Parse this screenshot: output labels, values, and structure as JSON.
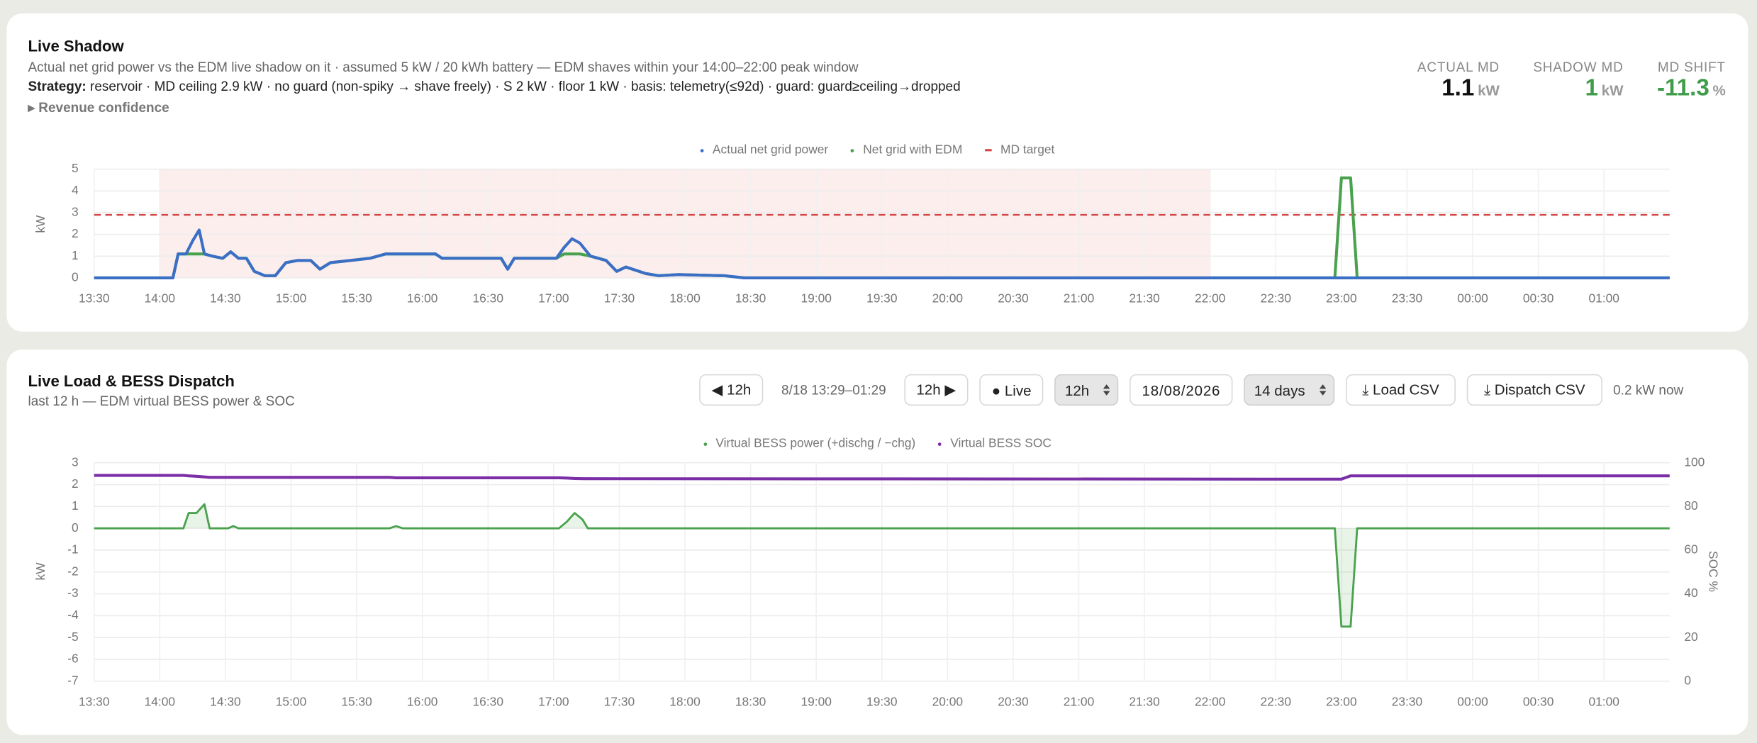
{
  "shadow_panel": {
    "title": "Live Shadow",
    "subtitle": "Actual net grid power vs the EDM live shadow on it · assumed 5 kW / 20 kWh battery — EDM shaves within your 14:00–22:00 peak window",
    "strategy_label": "Strategy:",
    "strategy": "reservoir · MD ceiling 2.9 kW · no guard (non-spiky → shave freely) · S 2 kW · floor 1 kW · basis: telemetry(≤92d) · guard: guard≥ceiling→dropped",
    "revenue_toggle": "▸ Revenue confidence",
    "metrics": [
      {
        "label": "ACTUAL MD",
        "value": 1.1,
        "unit": "kW",
        "color": "#111111"
      },
      {
        "label": "SHADOW MD",
        "value": 1,
        "unit": "kW",
        "color": "#3f9c4a"
      },
      {
        "label": "MD SHIFT",
        "value": -11.3,
        "unit": "%",
        "color": "#3f9c4a"
      }
    ]
  },
  "dispatch_panel": {
    "title": "Live Load & BESS Dispatch",
    "subtitle": "last 12 h — EDM virtual BESS power & SOC",
    "controls": {
      "prev": "◀ 12h",
      "range": "8/18 13:29–01:29",
      "next": "12h ▶",
      "live": "● Live",
      "window": "12h",
      "date": "18/08/2026",
      "history": "14 days",
      "load_csv": "⤓ Load CSV",
      "dispatch_csv": "⤓ Dispatch CSV",
      "now": "0.2 kW now"
    }
  },
  "chart_data": [
    {
      "type": "line",
      "ylabel": "kW",
      "xlim": [
        13.5,
        25.5
      ],
      "xticks": [
        {
          "value": 13.5,
          "label": "13:30"
        },
        {
          "value": 14,
          "label": "14:00"
        },
        {
          "value": 14.5,
          "label": "14:30"
        },
        {
          "value": 15,
          "label": "15:00"
        },
        {
          "value": 15.5,
          "label": "15:30"
        },
        {
          "value": 16,
          "label": "16:00"
        },
        {
          "value": 16.5,
          "label": "16:30"
        },
        {
          "value": 17,
          "label": "17:00"
        },
        {
          "value": 17.5,
          "label": "17:30"
        },
        {
          "value": 18,
          "label": "18:00"
        },
        {
          "value": 18.5,
          "label": "18:30"
        },
        {
          "value": 19,
          "label": "19:00"
        },
        {
          "value": 19.5,
          "label": "19:30"
        },
        {
          "value": 20,
          "label": "20:00"
        },
        {
          "value": 20.5,
          "label": "20:30"
        },
        {
          "value": 21,
          "label": "21:00"
        },
        {
          "value": 21.5,
          "label": "21:30"
        },
        {
          "value": 22,
          "label": "22:00"
        },
        {
          "value": 22.5,
          "label": "22:30"
        },
        {
          "value": 23,
          "label": "23:00"
        },
        {
          "value": 23.5,
          "label": "23:30"
        },
        {
          "value": 24,
          "label": "00:00"
        },
        {
          "value": 24.5,
          "label": "00:30"
        },
        {
          "value": 25,
          "label": "01:00"
        }
      ],
      "ylim": [
        0,
        5
      ],
      "yticks": [
        0,
        1,
        2,
        3,
        4,
        5
      ],
      "grid": true,
      "legend": "top",
      "peak_window": [
        14,
        22
      ],
      "peak_color": "#fdeeee",
      "x": [
        13.5,
        14.1,
        14.14,
        14.2,
        14.25,
        14.3,
        14.34,
        14.4,
        14.48,
        14.54,
        14.6,
        14.66,
        14.72,
        14.8,
        14.88,
        14.96,
        15.05,
        15.15,
        15.22,
        15.3,
        15.45,
        15.6,
        15.72,
        16.1,
        16.15,
        16.6,
        16.65,
        16.7,
        17.02,
        17.08,
        17.14,
        17.2,
        17.28,
        17.4,
        17.48,
        17.55,
        17.7,
        17.8,
        17.95,
        18.3,
        18.45,
        22.95,
        23.0,
        23.07,
        23.12,
        25.5
      ],
      "series": [
        {
          "name": "Actual net grid power",
          "color": "#3b6fc6",
          "values": [
            0,
            0,
            1.1,
            1.1,
            1.7,
            2.2,
            1.1,
            1.0,
            0.9,
            1.2,
            0.9,
            0.9,
            0.3,
            0.1,
            0.1,
            0.7,
            0.8,
            0.8,
            0.4,
            0.7,
            0.8,
            0.9,
            1.1,
            1.1,
            0.9,
            0.9,
            0.4,
            0.9,
            0.9,
            1.4,
            1.8,
            1.6,
            1.0,
            0.8,
            0.3,
            0.5,
            0.2,
            0.1,
            0.15,
            0.1,
            0,
            0,
            0,
            0,
            0,
            0
          ]
        },
        {
          "name": "Net grid with EDM",
          "color": "#4aa24e",
          "values": [
            0,
            0,
            1.1,
            1.1,
            1.1,
            1.1,
            1.1,
            1.0,
            0.9,
            1.2,
            0.9,
            0.9,
            0.3,
            0.1,
            0.1,
            0.7,
            0.8,
            0.8,
            0.4,
            0.7,
            0.8,
            0.9,
            1.1,
            1.1,
            0.9,
            0.9,
            0.4,
            0.9,
            0.9,
            1.1,
            1.1,
            1.1,
            1.0,
            0.8,
            0.3,
            0.5,
            0.2,
            0.1,
            0.15,
            0.1,
            0,
            0,
            4.6,
            4.6,
            0,
            0
          ]
        }
      ],
      "reference_lines": [
        {
          "name": "MD target",
          "value": 2.9,
          "color": "#d64545",
          "style": "dashed"
        }
      ]
    },
    {
      "type": "line",
      "ylabel": "kW",
      "y2label": "SOC %",
      "xlim": [
        13.5,
        25.5
      ],
      "xticks": [
        {
          "value": 13.5,
          "label": "13:30"
        },
        {
          "value": 14,
          "label": "14:00"
        },
        {
          "value": 14.5,
          "label": "14:30"
        },
        {
          "value": 15,
          "label": "15:00"
        },
        {
          "value": 15.5,
          "label": "15:30"
        },
        {
          "value": 16,
          "label": "16:00"
        },
        {
          "value": 16.5,
          "label": "16:30"
        },
        {
          "value": 17,
          "label": "17:00"
        },
        {
          "value": 17.5,
          "label": "17:30"
        },
        {
          "value": 18,
          "label": "18:00"
        },
        {
          "value": 18.5,
          "label": "18:30"
        },
        {
          "value": 19,
          "label": "19:00"
        },
        {
          "value": 19.5,
          "label": "19:30"
        },
        {
          "value": 20,
          "label": "20:00"
        },
        {
          "value": 20.5,
          "label": "20:30"
        },
        {
          "value": 21,
          "label": "21:00"
        },
        {
          "value": 21.5,
          "label": "21:30"
        },
        {
          "value": 22,
          "label": "22:00"
        },
        {
          "value": 22.5,
          "label": "22:30"
        },
        {
          "value": 23,
          "label": "23:00"
        },
        {
          "value": 23.5,
          "label": "23:30"
        },
        {
          "value": 24,
          "label": "00:00"
        },
        {
          "value": 24.5,
          "label": "00:30"
        },
        {
          "value": 25,
          "label": "01:00"
        }
      ],
      "ylim": [
        -7,
        3
      ],
      "yticks": [
        -7,
        -6,
        -5,
        -4,
        -3,
        -2,
        -1,
        0,
        1,
        2,
        3
      ],
      "y2lim": [
        0,
        100
      ],
      "y2ticks": [
        0,
        20,
        40,
        60,
        80,
        100
      ],
      "grid": true,
      "legend": "top",
      "x": [
        13.5,
        14.18,
        14.22,
        14.28,
        14.34,
        14.38,
        14.52,
        14.56,
        14.6,
        15.75,
        15.8,
        15.85,
        17.04,
        17.1,
        17.16,
        17.22,
        17.26,
        22.95,
        23.0,
        23.07,
        23.12,
        25.5
      ],
      "series": [
        {
          "name": "Virtual BESS power (+dischg / −chg)",
          "color": "#4aa24e",
          "area": true,
          "values": [
            0,
            0,
            0.7,
            0.7,
            1.1,
            0,
            0,
            0.1,
            0,
            0,
            0.1,
            0,
            0,
            0.3,
            0.7,
            0.4,
            0,
            0,
            -4.5,
            -4.5,
            0,
            0
          ]
        },
        {
          "name": "Virtual BESS SOC",
          "color": "#7b2fa6",
          "axis": "y2",
          "values": [
            94.2,
            94.2,
            94.0,
            93.8,
            93.5,
            93.3,
            93.3,
            93.3,
            93.3,
            93.3,
            93.1,
            93.1,
            93.1,
            93.0,
            92.8,
            92.7,
            92.7,
            92.5,
            92.5,
            94,
            94,
            94
          ]
        }
      ]
    }
  ]
}
